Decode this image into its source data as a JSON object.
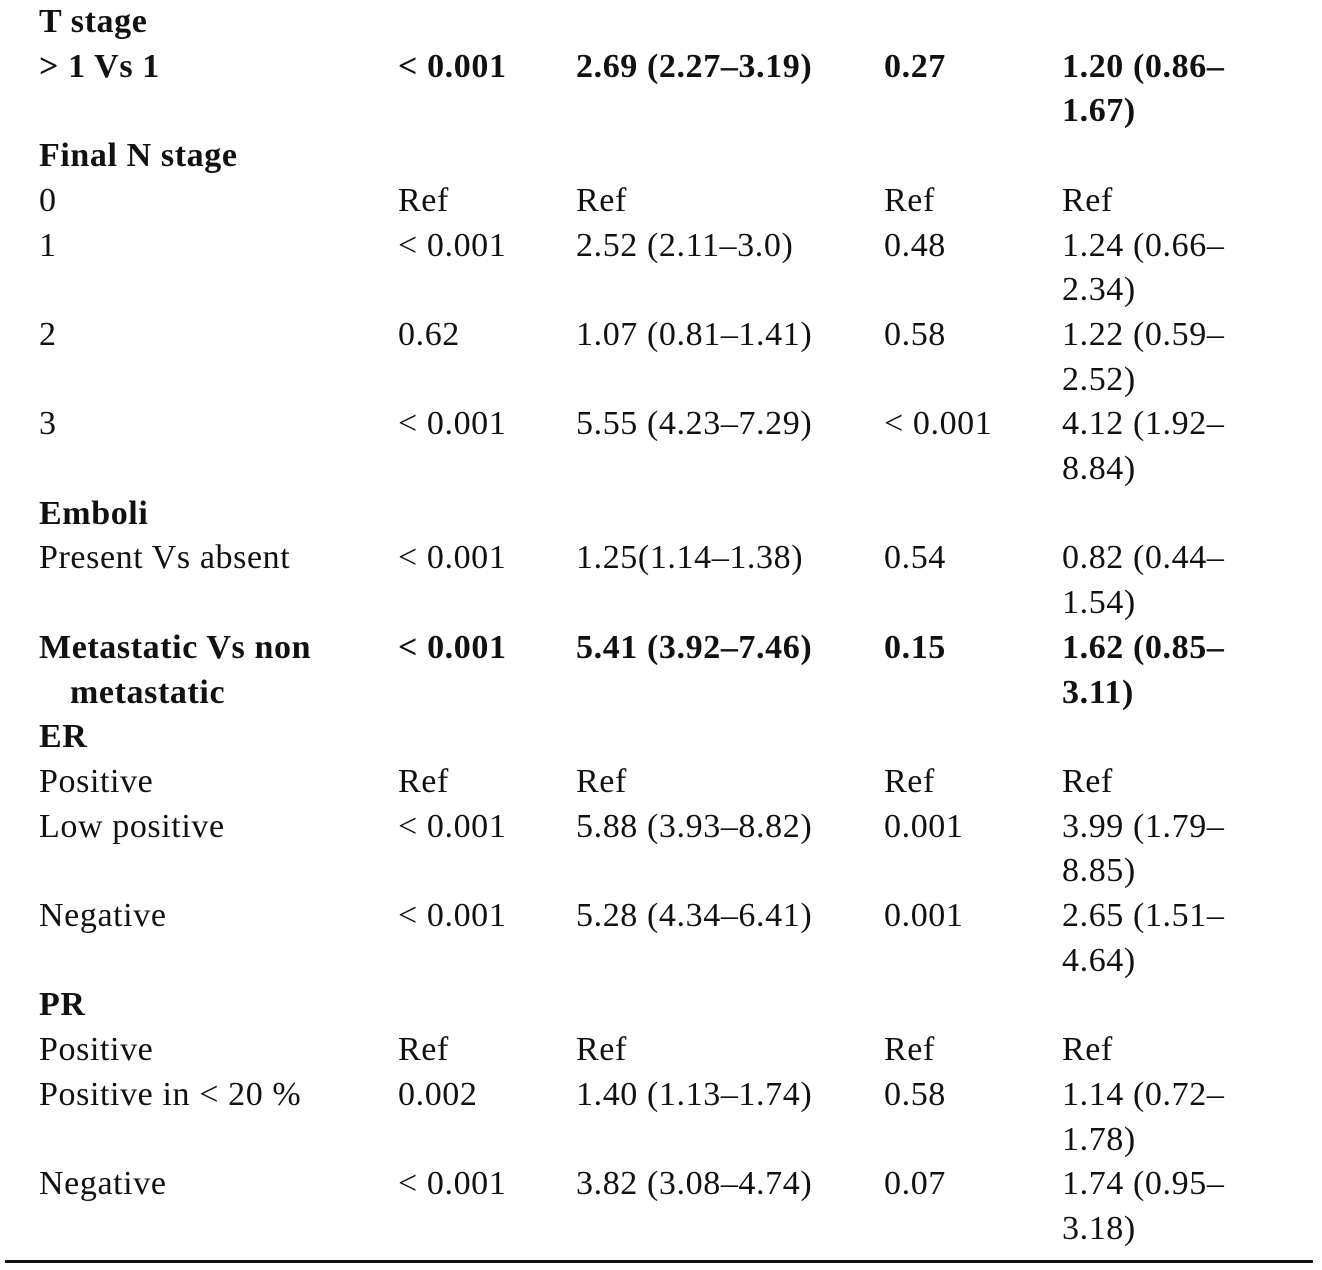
{
  "table": {
    "rows": [
      {
        "cells": [
          "T stage"
        ],
        "bold": true
      },
      {
        "cells": [
          "> 1 Vs 1",
          "< 0.001",
          "2.69 (2.27–3.19)",
          "0.27",
          "1.20 (0.86–1.67)"
        ],
        "bold": true
      },
      {
        "cells": [
          "Final N stage"
        ],
        "bold": true
      },
      {
        "cells": [
          "0",
          "Ref",
          "Ref",
          "Ref",
          "Ref"
        ],
        "bold": false
      },
      {
        "cells": [
          "1",
          "< 0.001",
          "2.52 (2.11–3.0)",
          "0.48",
          "1.24 (0.66–2.34)"
        ],
        "bold": false
      },
      {
        "cells": [
          "2",
          "0.62",
          "1.07 (0.81–1.41)",
          "0.58",
          "1.22 (0.59–2.52)"
        ],
        "bold": false
      },
      {
        "cells": [
          "3",
          "< 0.001",
          "5.55 (4.23–7.29)",
          "< 0.001",
          "4.12 (1.92–8.84)"
        ],
        "bold": false
      },
      {
        "cells": [
          "Emboli"
        ],
        "bold": true
      },
      {
        "cells": [
          "Present Vs absent",
          "< 0.001",
          "1.25(1.14–1.38)",
          "0.54",
          "0.82 (0.44–1.54)"
        ],
        "bold": false
      },
      {
        "cells": [
          "Metastatic Vs non metastatic",
          "< 0.001",
          "5.41 (3.92–7.46)",
          "0.15",
          "1.62 (0.85–3.11)"
        ],
        "bold": true
      },
      {
        "cells": [
          "ER"
        ],
        "bold": true
      },
      {
        "cells": [
          "Positive",
          "Ref",
          "Ref",
          "Ref",
          "Ref"
        ],
        "bold": false
      },
      {
        "cells": [
          "Low positive",
          "< 0.001",
          "5.88 (3.93–8.82)",
          "0.001",
          "3.99 (1.79–8.85)"
        ],
        "bold": false
      },
      {
        "cells": [
          "Negative",
          "< 0.001",
          "5.28 (4.34–6.41)",
          "0.001",
          "2.65 (1.51–4.64)"
        ],
        "bold": false
      },
      {
        "cells": [
          "PR"
        ],
        "bold": true
      },
      {
        "cells": [
          "Positive",
          "Ref",
          "Ref",
          "Ref",
          "Ref"
        ],
        "bold": false
      },
      {
        "cells": [
          "Positive in < 20 %",
          "0.002",
          "1.40 (1.13–1.74)",
          "0.58",
          "1.14 (0.72–1.78)"
        ],
        "bold": false
      },
      {
        "cells": [
          "Negative",
          "< 0.001",
          "3.82 (3.08–4.74)",
          "0.07",
          "1.74 (0.95–3.18)"
        ],
        "bold": false
      }
    ]
  }
}
